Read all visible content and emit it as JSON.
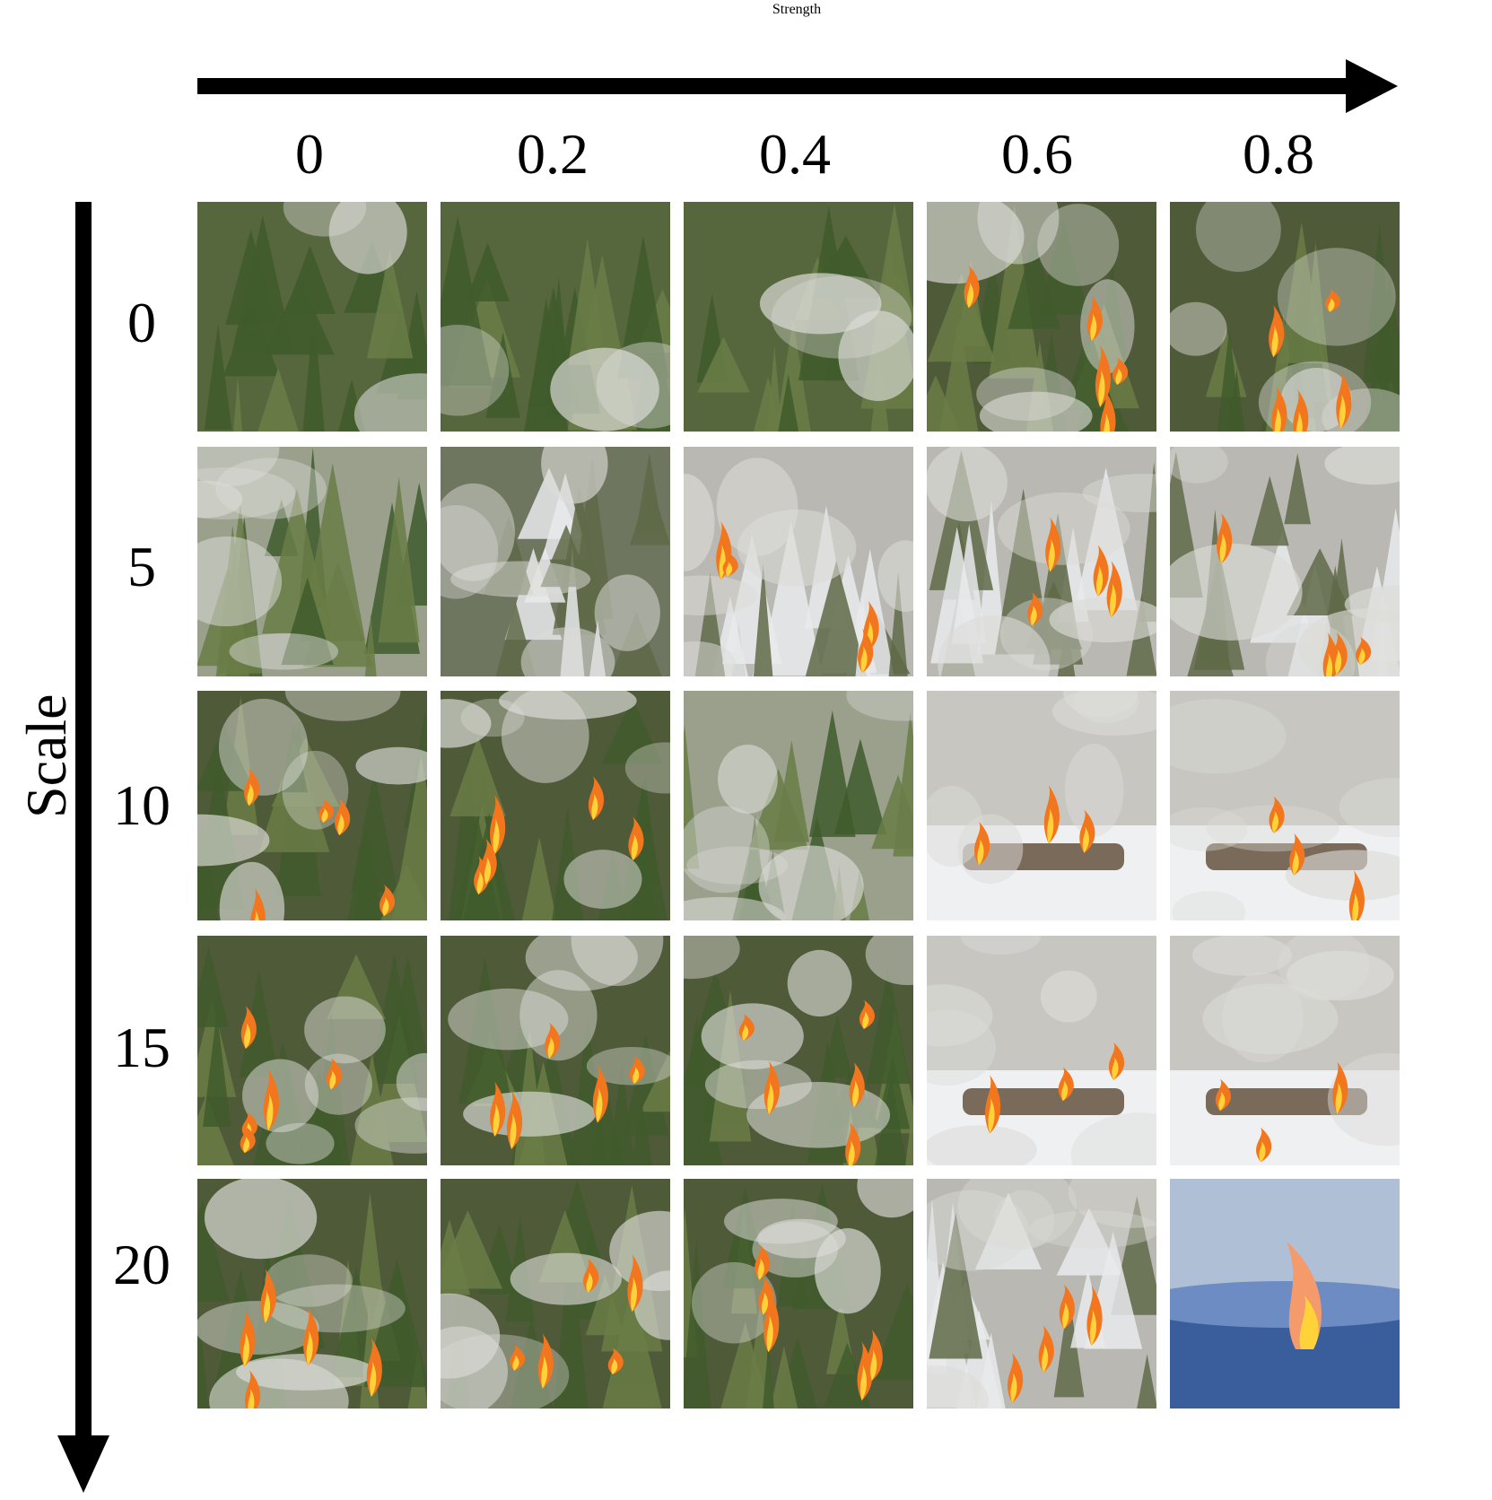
{
  "axes": {
    "x_title": "Strength",
    "y_title": "Scale",
    "strength_values": [
      "0",
      "0.2",
      "0.4",
      "0.6",
      "0.8"
    ],
    "scale_values": [
      "0",
      "5",
      "10",
      "15",
      "20"
    ]
  },
  "grid": {
    "description_rows": [
      [
        "forest",
        "forest",
        "forest",
        "forest-fire",
        "forest-fire"
      ],
      [
        "smoke",
        "snow-forest",
        "snow-fire",
        "snow-fire",
        "snow-fire"
      ],
      [
        "forest-fire",
        "forest-fire",
        "smoke",
        "campfire",
        "campfire"
      ],
      [
        "forest-fire",
        "forest-fire",
        "forest-fire",
        "campfire",
        "campfire"
      ],
      [
        "forest-fire",
        "forest-fire",
        "forest-fire",
        "snow-fire",
        "blue-fire"
      ]
    ]
  },
  "colors": {
    "forest": "#4e6236",
    "smoke": "#b8b5ad",
    "snow": "#e9ecef",
    "fire": "#f2761e",
    "flame_core": "#ffd23a",
    "blue": "#5b7fb6"
  }
}
